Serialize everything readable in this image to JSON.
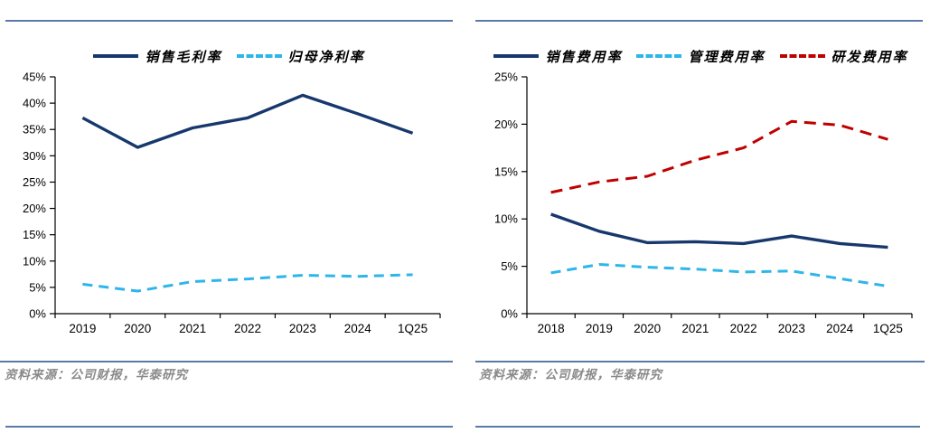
{
  "page": {
    "rule_color": "#5b7ba7",
    "axis_color": "#000000",
    "source_color": "#8a8a8a"
  },
  "sources": {
    "left": "资料来源：公司财报，华泰研究",
    "right": "资料来源：公司财报，华泰研究"
  },
  "chart_data": [
    {
      "type": "line",
      "title": "",
      "categories": [
        "2019",
        "2020",
        "2021",
        "2022",
        "2023",
        "2024",
        "1Q25"
      ],
      "series": [
        {
          "name": "销售毛利率",
          "color": "#17386d",
          "style": "solid",
          "dash": "",
          "values": [
            37.2,
            31.6,
            35.3,
            37.2,
            41.5,
            38.0,
            34.3
          ]
        },
        {
          "name": "归母净利率",
          "color": "#2eb5ea",
          "style": "dashed",
          "dash": "11 7",
          "values": [
            5.6,
            4.3,
            6.1,
            6.6,
            7.3,
            7.1,
            7.4
          ]
        }
      ],
      "ylim": [
        0,
        45
      ],
      "ytick_step": 5,
      "yticks": [
        "0%",
        "5%",
        "10%",
        "15%",
        "20%",
        "25%",
        "30%",
        "35%",
        "40%",
        "45%"
      ],
      "xlabel": "",
      "ylabel": "",
      "grid": false,
      "legend_position": "top"
    },
    {
      "type": "line",
      "title": "",
      "categories": [
        "2018",
        "2019",
        "2020",
        "2021",
        "2022",
        "2023",
        "2024",
        "1Q25"
      ],
      "series": [
        {
          "name": "销售费用率",
          "color": "#17386d",
          "style": "solid",
          "dash": "",
          "values": [
            10.5,
            8.7,
            7.5,
            7.6,
            7.4,
            8.2,
            7.4,
            7.0
          ]
        },
        {
          "name": "管理费用率",
          "color": "#2eb5ea",
          "style": "dashed",
          "dash": "11 7",
          "values": [
            4.3,
            5.2,
            4.9,
            4.7,
            4.4,
            4.5,
            3.7,
            2.9
          ]
        },
        {
          "name": "研发费用率",
          "color": "#c00000",
          "style": "dashed",
          "dash": "13 8",
          "values": [
            12.8,
            13.9,
            14.5,
            16.2,
            17.5,
            20.3,
            19.9,
            18.4
          ]
        }
      ],
      "ylim": [
        0,
        25
      ],
      "ytick_step": 5,
      "yticks": [
        "0%",
        "5%",
        "10%",
        "15%",
        "20%",
        "25%"
      ],
      "xlabel": "",
      "ylabel": "",
      "grid": false,
      "legend_position": "top"
    }
  ]
}
